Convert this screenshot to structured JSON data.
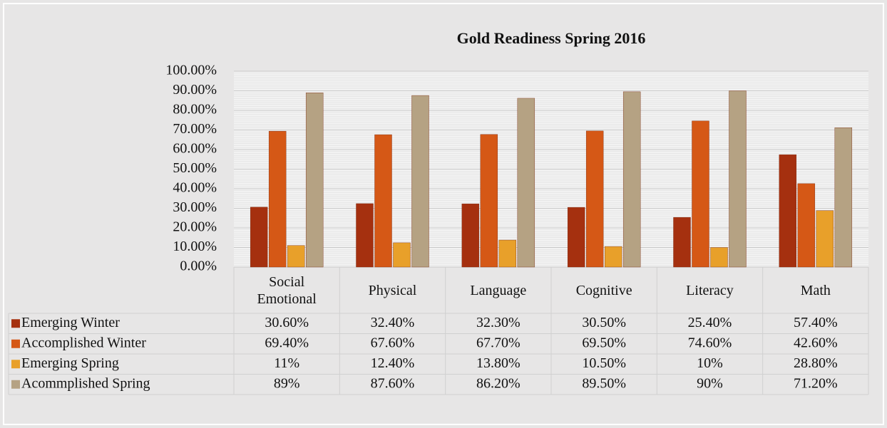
{
  "chart_data": {
    "type": "bar",
    "title": "Gold Readiness Spring 2016",
    "categories": [
      "Social Emotional",
      "Physical",
      "Language",
      "Cognitive",
      "Literacy",
      "Math"
    ],
    "series": [
      {
        "name": "Emerging Winter",
        "color": "#a5300f",
        "values": [
          30.6,
          32.4,
          32.3,
          30.5,
          25.4,
          57.4
        ],
        "value_labels": [
          "30.60%",
          "32.40%",
          "32.30%",
          "30.50%",
          "25.40%",
          "57.40%"
        ]
      },
      {
        "name": "Accomplished Winter",
        "color": "#d55816",
        "values": [
          69.4,
          67.6,
          67.7,
          69.5,
          74.6,
          42.6
        ],
        "value_labels": [
          "69.40%",
          "67.60%",
          "67.70%",
          "69.50%",
          "74.60%",
          "42.60%"
        ]
      },
      {
        "name": "Emerging Spring",
        "color": "#e8a02a",
        "values": [
          11,
          12.4,
          13.8,
          10.5,
          10,
          28.8
        ],
        "value_labels": [
          "11%",
          "12.40%",
          "13.80%",
          "10.50%",
          "10%",
          "28.80%"
        ]
      },
      {
        "name": "Acommplished Spring",
        "color": "#b5a283",
        "values": [
          89,
          87.6,
          86.2,
          89.5,
          90,
          71.2
        ],
        "value_labels": [
          "89%",
          "87.60%",
          "86.20%",
          "89.50%",
          "90%",
          "71.20%"
        ]
      }
    ],
    "ylim": [
      0,
      100
    ],
    "yticks": [
      {
        "value": 0,
        "label": "0.00%"
      },
      {
        "value": 10,
        "label": "10.00%"
      },
      {
        "value": 20,
        "label": "20.00%"
      },
      {
        "value": 30,
        "label": "30.00%"
      },
      {
        "value": 40,
        "label": "40.00%"
      },
      {
        "value": 50,
        "label": "50.00%"
      },
      {
        "value": 60,
        "label": "60.00%"
      },
      {
        "value": 70,
        "label": "70.00%"
      },
      {
        "value": 80,
        "label": "80.00%"
      },
      {
        "value": 90,
        "label": "90.00%"
      },
      {
        "value": 100,
        "label": "100.00%"
      }
    ],
    "grid": true
  }
}
